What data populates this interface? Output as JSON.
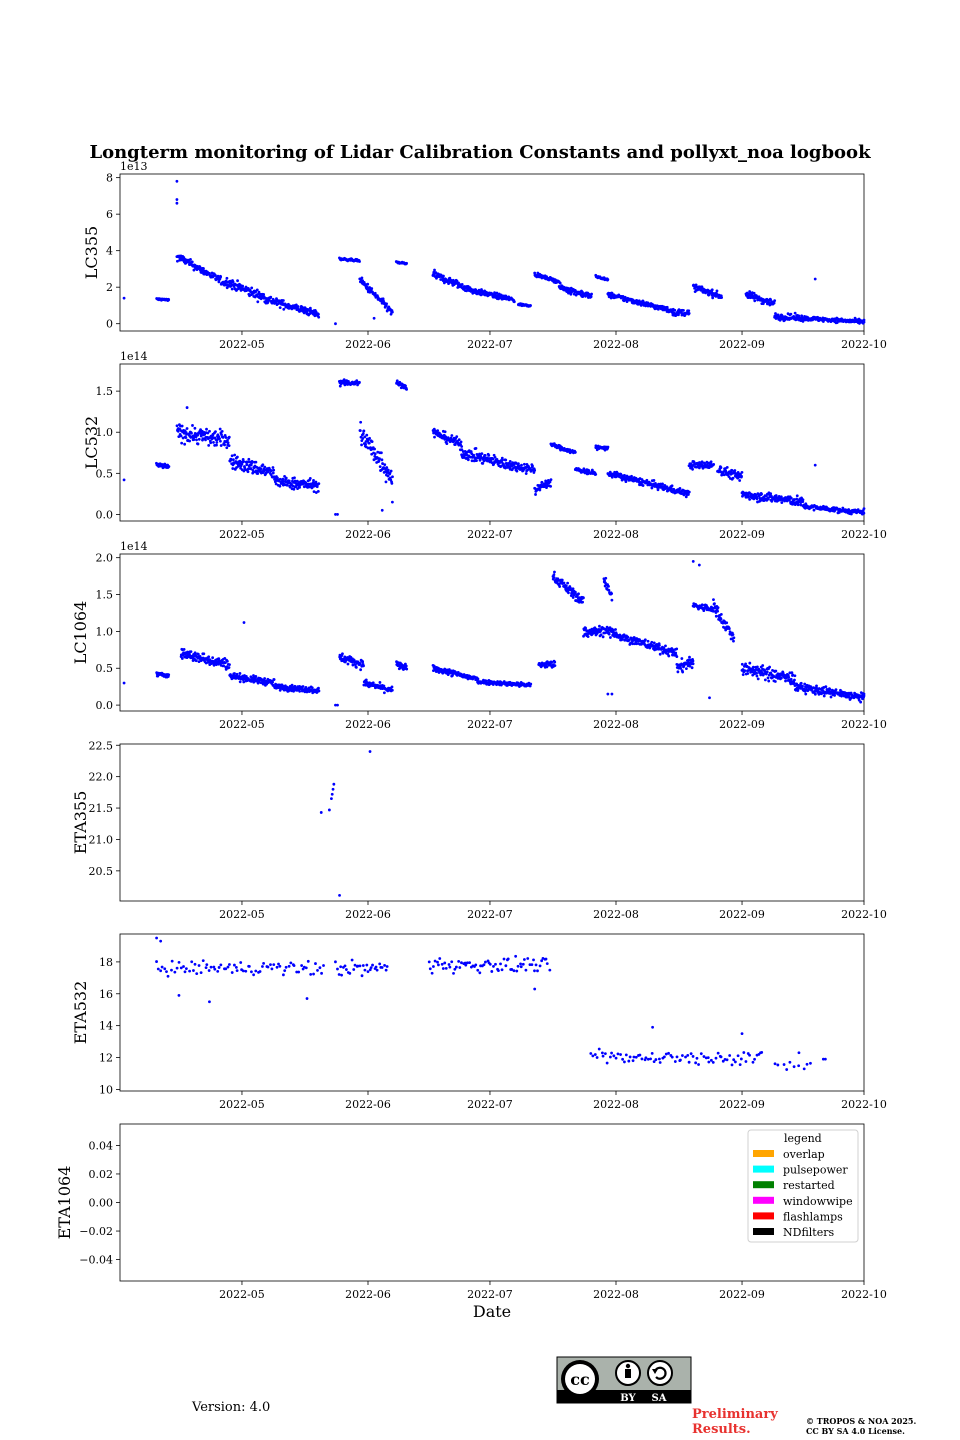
{
  "figure": {
    "title": "Longterm monitoring of Lidar Calibration Constants and pollyxt_noa logbook",
    "xlabel": "Date",
    "version": "Version: 4.0",
    "preliminary": [
      "Preliminary",
      "Results."
    ],
    "copyright": [
      "© TROPOS & NOA 2025.",
      "CC BY SA 4.0 License."
    ],
    "license_badge": {
      "icon": "cc-by-sa-icon",
      "by": "BY",
      "sa": "SA"
    }
  },
  "colors": {
    "points": "#0000ff",
    "axis": "#000000",
    "background": "#ffffff",
    "prelim": "#e8322f"
  },
  "chart_data": [
    {
      "type": "scatter",
      "ylabel": "LC355",
      "offset": "1e13",
      "xlim": [
        "2022-04-01",
        "2022-10-01"
      ],
      "ylim": [
        -0.4,
        8.2
      ],
      "yticks": [
        0,
        2,
        4,
        6,
        8
      ],
      "ytick_labels": [
        "0",
        "2",
        "4",
        "6",
        "8"
      ],
      "xticks": [
        "2022-05-01",
        "2022-06-01",
        "2022-07-01",
        "2022-08-01",
        "2022-09-01",
        "2022-10-01"
      ],
      "xtick_labels": [
        "2022-05",
        "2022-06",
        "2022-07",
        "2022-08",
        "2022-09",
        "2022-10"
      ],
      "segments": [
        {
          "start": 9.0,
          "end": 12.0,
          "v0": 1.35,
          "v1": 1.3,
          "noise": 0.1
        },
        {
          "start": 14.0,
          "end": 26.0,
          "v0": 3.7,
          "v1": 2.2,
          "noise": 0.35
        },
        {
          "start": 26.0,
          "end": 38.0,
          "v0": 2.3,
          "v1": 1.2,
          "noise": 0.45
        },
        {
          "start": 38.0,
          "end": 49.0,
          "v0": 1.2,
          "v1": 0.5,
          "noise": 0.35
        },
        {
          "start": 54.0,
          "end": 59.0,
          "v0": 3.55,
          "v1": 3.45,
          "noise": 0.1
        },
        {
          "start": 59.0,
          "end": 67.0,
          "v0": 2.4,
          "v1": 0.6,
          "noise": 0.35
        },
        {
          "start": 68.0,
          "end": 70.5,
          "v0": 3.35,
          "v1": 3.3,
          "noise": 0.1
        },
        {
          "start": 77.0,
          "end": 87.0,
          "v0": 2.7,
          "v1": 1.8,
          "noise": 0.35
        },
        {
          "start": 87.0,
          "end": 97.0,
          "v0": 1.8,
          "v1": 1.3,
          "noise": 0.25
        },
        {
          "start": 98.0,
          "end": 101.0,
          "v0": 1.05,
          "v1": 1.0,
          "noise": 0.1
        },
        {
          "start": 102.0,
          "end": 108.0,
          "v0": 2.7,
          "v1": 2.3,
          "noise": 0.15
        },
        {
          "start": 108.0,
          "end": 116.0,
          "v0": 2.0,
          "v1": 1.5,
          "noise": 0.3
        },
        {
          "start": 117.0,
          "end": 120.0,
          "v0": 2.6,
          "v1": 2.4,
          "noise": 0.1
        },
        {
          "start": 120.0,
          "end": 136.0,
          "v0": 1.6,
          "v1": 0.7,
          "noise": 0.25
        },
        {
          "start": 136.0,
          "end": 140.0,
          "v0": 0.6,
          "v1": 0.6,
          "noise": 0.3
        },
        {
          "start": 141.0,
          "end": 148.0,
          "v0": 2.0,
          "v1": 1.5,
          "noise": 0.3
        },
        {
          "start": 154.0,
          "end": 161.0,
          "v0": 1.6,
          "v1": 1.1,
          "noise": 0.35
        },
        {
          "start": 161.0,
          "end": 168.0,
          "v0": 0.4,
          "v1": 0.3,
          "noise": 0.3
        },
        {
          "start": 168.0,
          "end": 183.0,
          "v0": 0.3,
          "v1": 0.1,
          "noise": 0.2
        }
      ],
      "outliers": [
        [
          14.0,
          7.8
        ],
        [
          14.0,
          6.8
        ],
        [
          14.0,
          6.6
        ],
        [
          20.5,
          3.0
        ],
        [
          53.0,
          0.0
        ],
        [
          62.5,
          0.3
        ],
        [
          171.0,
          2.45
        ],
        [
          1.0,
          1.4
        ],
        [
          183.0,
          0.2
        ]
      ]
    },
    {
      "type": "scatter",
      "ylabel": "LC532",
      "offset": "1e14",
      "xlim": [
        "2022-04-01",
        "2022-10-01"
      ],
      "ylim": [
        -0.08,
        1.83
      ],
      "yticks": [
        0,
        0.5,
        1.0,
        1.5
      ],
      "ytick_labels": [
        "0.0",
        "0.5",
        "1.0",
        "1.5"
      ],
      "xticks": [
        "2022-05-01",
        "2022-06-01",
        "2022-07-01",
        "2022-08-01",
        "2022-09-01",
        "2022-10-01"
      ],
      "xtick_labels": [
        "2022-05",
        "2022-06",
        "2022-07",
        "2022-08",
        "2022-09",
        "2022-10"
      ],
      "segments": [
        {
          "start": 9.0,
          "end": 12.0,
          "v0": 0.6,
          "v1": 0.58,
          "noise": 0.05
        },
        {
          "start": 14.0,
          "end": 27.0,
          "v0": 1.0,
          "v1": 0.9,
          "noise": 0.18
        },
        {
          "start": 27.0,
          "end": 38.0,
          "v0": 0.65,
          "v1": 0.5,
          "noise": 0.15
        },
        {
          "start": 38.0,
          "end": 49.0,
          "v0": 0.4,
          "v1": 0.35,
          "noise": 0.12
        },
        {
          "start": 54.0,
          "end": 59.0,
          "v0": 1.6,
          "v1": 1.6,
          "noise": 0.06
        },
        {
          "start": 59.0,
          "end": 67.0,
          "v0": 1.0,
          "v1": 0.45,
          "noise": 0.25
        },
        {
          "start": 68.0,
          "end": 70.5,
          "v0": 1.6,
          "v1": 1.55,
          "noise": 0.05
        },
        {
          "start": 77.0,
          "end": 84.0,
          "v0": 1.0,
          "v1": 0.85,
          "noise": 0.1
        },
        {
          "start": 84.0,
          "end": 96.0,
          "v0": 0.75,
          "v1": 0.6,
          "noise": 0.12
        },
        {
          "start": 96.0,
          "end": 102.0,
          "v0": 0.6,
          "v1": 0.55,
          "noise": 0.1
        },
        {
          "start": 102.0,
          "end": 106.0,
          "v0": 0.3,
          "v1": 0.4,
          "noise": 0.1
        },
        {
          "start": 106.0,
          "end": 112.0,
          "v0": 0.85,
          "v1": 0.75,
          "noise": 0.04
        },
        {
          "start": 112.0,
          "end": 117.0,
          "v0": 0.55,
          "v1": 0.5,
          "noise": 0.05
        },
        {
          "start": 117.0,
          "end": 120.0,
          "v0": 0.82,
          "v1": 0.8,
          "noise": 0.04
        },
        {
          "start": 120.0,
          "end": 140.0,
          "v0": 0.5,
          "v1": 0.25,
          "noise": 0.07
        },
        {
          "start": 140.0,
          "end": 146.0,
          "v0": 0.6,
          "v1": 0.6,
          "noise": 0.08
        },
        {
          "start": 147.0,
          "end": 153.0,
          "v0": 0.55,
          "v1": 0.45,
          "noise": 0.1
        },
        {
          "start": 153.0,
          "end": 168.0,
          "v0": 0.25,
          "v1": 0.15,
          "noise": 0.1
        },
        {
          "start": 168.0,
          "end": 183.0,
          "v0": 0.1,
          "v1": 0.02,
          "noise": 0.05
        }
      ],
      "outliers": [
        [
          53.0,
          0.0
        ],
        [
          53.5,
          0.0
        ],
        [
          16.5,
          1.3
        ],
        [
          171.0,
          0.6
        ],
        [
          1.0,
          0.42
        ],
        [
          183.0,
          0.07
        ],
        [
          64.5,
          0.05
        ],
        [
          67.0,
          0.15
        ]
      ]
    },
    {
      "type": "scatter",
      "ylabel": "LC1064",
      "offset": "1e14",
      "xlim": [
        "2022-04-01",
        "2022-10-01"
      ],
      "ylim": [
        -0.08,
        2.05
      ],
      "yticks": [
        0,
        0.5,
        1.0,
        1.5,
        2.0
      ],
      "ytick_labels": [
        "0.0",
        "0.5",
        "1.0",
        "1.5",
        "2.0"
      ],
      "xticks": [
        "2022-05-01",
        "2022-06-01",
        "2022-07-01",
        "2022-08-01",
        "2022-09-01",
        "2022-10-01"
      ],
      "xtick_labels": [
        "2022-05",
        "2022-06",
        "2022-07",
        "2022-08",
        "2022-09",
        "2022-10"
      ],
      "segments": [
        {
          "start": 9.0,
          "end": 12.0,
          "v0": 0.42,
          "v1": 0.4,
          "noise": 0.05
        },
        {
          "start": 15.0,
          "end": 27.0,
          "v0": 0.7,
          "v1": 0.55,
          "noise": 0.12
        },
        {
          "start": 27.0,
          "end": 38.0,
          "v0": 0.4,
          "v1": 0.3,
          "noise": 0.08
        },
        {
          "start": 38.0,
          "end": 49.0,
          "v0": 0.25,
          "v1": 0.2,
          "noise": 0.07
        },
        {
          "start": 54.0,
          "end": 60.0,
          "v0": 0.65,
          "v1": 0.55,
          "noise": 0.1
        },
        {
          "start": 60.0,
          "end": 67.0,
          "v0": 0.3,
          "v1": 0.2,
          "noise": 0.08
        },
        {
          "start": 68.0,
          "end": 70.5,
          "v0": 0.55,
          "v1": 0.5,
          "noise": 0.08
        },
        {
          "start": 77.0,
          "end": 88.0,
          "v0": 0.5,
          "v1": 0.35,
          "noise": 0.07
        },
        {
          "start": 88.0,
          "end": 101.0,
          "v0": 0.32,
          "v1": 0.27,
          "noise": 0.05
        },
        {
          "start": 103.0,
          "end": 107.0,
          "v0": 0.55,
          "v1": 0.55,
          "noise": 0.08
        },
        {
          "start": 106.5,
          "end": 114.0,
          "v0": 1.75,
          "v1": 1.4,
          "noise": 0.12
        },
        {
          "start": 114.0,
          "end": 122.0,
          "v0": 1.0,
          "v1": 1.0,
          "noise": 0.14
        },
        {
          "start": 119.0,
          "end": 121.0,
          "v0": 1.7,
          "v1": 1.5,
          "noise": 0.12
        },
        {
          "start": 122.0,
          "end": 137.0,
          "v0": 0.95,
          "v1": 0.7,
          "noise": 0.1
        },
        {
          "start": 137.0,
          "end": 141.0,
          "v0": 0.5,
          "v1": 0.6,
          "noise": 0.15
        },
        {
          "start": 141.0,
          "end": 146.0,
          "v0": 1.35,
          "v1": 1.3,
          "noise": 0.08
        },
        {
          "start": 146.0,
          "end": 151.0,
          "v0": 1.35,
          "v1": 0.9,
          "noise": 0.15
        },
        {
          "start": 153.0,
          "end": 166.0,
          "v0": 0.5,
          "v1": 0.35,
          "noise": 0.15
        },
        {
          "start": 166.0,
          "end": 183.0,
          "v0": 0.25,
          "v1": 0.1,
          "noise": 0.1
        }
      ],
      "outliers": [
        [
          53.0,
          0.0
        ],
        [
          53.5,
          0.0
        ],
        [
          30.5,
          1.12
        ],
        [
          120.0,
          0.15
        ],
        [
          121.0,
          0.15
        ],
        [
          145.0,
          0.1
        ],
        [
          1.0,
          0.3
        ],
        [
          183.0,
          0.15
        ],
        [
          141.0,
          1.95
        ],
        [
          142.5,
          1.9
        ]
      ]
    },
    {
      "type": "scatter",
      "ylabel": "ETA355",
      "xlim": [
        "2022-04-01",
        "2022-10-01"
      ],
      "ylim": [
        20.02,
        22.52
      ],
      "yticks": [
        20.5,
        21.0,
        21.5,
        22.0,
        22.5
      ],
      "ytick_labels": [
        "20.5",
        "21.0",
        "21.5",
        "22.0",
        "22.5"
      ],
      "xticks": [
        "2022-05-01",
        "2022-06-01",
        "2022-07-01",
        "2022-08-01",
        "2022-09-01",
        "2022-10-01"
      ],
      "xtick_labels": [
        "2022-05",
        "2022-06",
        "2022-07",
        "2022-08",
        "2022-09",
        "2022-10"
      ],
      "segments": [],
      "outliers": [
        [
          49.5,
          21.43
        ],
        [
          51.5,
          21.47
        ],
        [
          52.0,
          21.65
        ],
        [
          52.2,
          21.72
        ],
        [
          52.4,
          21.8
        ],
        [
          52.6,
          21.88
        ],
        [
          54.0,
          20.11
        ],
        [
          61.5,
          22.4
        ]
      ]
    },
    {
      "type": "scatter",
      "ylabel": "ETA532",
      "xlim": [
        "2022-04-01",
        "2022-10-01"
      ],
      "ylim": [
        9.9,
        19.75
      ],
      "yticks": [
        10,
        12,
        14,
        16,
        18
      ],
      "ytick_labels": [
        "10",
        "12",
        "14",
        "16",
        "18"
      ],
      "xticks": [
        "2022-05-01",
        "2022-06-01",
        "2022-07-01",
        "2022-08-01",
        "2022-09-01",
        "2022-10-01"
      ],
      "xtick_labels": [
        "2022-05",
        "2022-06",
        "2022-07",
        "2022-08",
        "2022-09",
        "2022-10"
      ],
      "segments": [
        {
          "start": 9.0,
          "end": 50.0,
          "v0": 17.6,
          "v1": 17.6,
          "noise": 0.75,
          "step": 0.5
        },
        {
          "start": 53.0,
          "end": 66.0,
          "v0": 17.6,
          "v1": 17.6,
          "noise": 0.8,
          "step": 0.4
        },
        {
          "start": 76.0,
          "end": 106.0,
          "v0": 17.8,
          "v1": 17.8,
          "noise": 0.8,
          "step": 0.4
        },
        {
          "start": 116.0,
          "end": 158.0,
          "v0": 12.0,
          "v1": 12.0,
          "noise": 0.7,
          "step": 0.5
        },
        {
          "start": 161.0,
          "end": 170.0,
          "v0": 11.5,
          "v1": 11.5,
          "noise": 0.6,
          "step": 1.0
        }
      ],
      "outliers": [
        [
          9.0,
          19.5
        ],
        [
          10.0,
          19.3
        ],
        [
          14.5,
          15.9
        ],
        [
          22.0,
          15.5
        ],
        [
          46.0,
          15.7
        ],
        [
          102.0,
          16.3
        ],
        [
          131.0,
          13.9
        ],
        [
          153.0,
          13.5
        ],
        [
          173.0,
          11.9
        ],
        [
          173.5,
          11.9
        ],
        [
          167.0,
          12.3
        ]
      ]
    },
    {
      "type": "scatter",
      "ylabel": "ETA1064",
      "xlabel": "Date",
      "xlim": [
        "2022-04-01",
        "2022-10-01"
      ],
      "ylim": [
        -0.055,
        0.055
      ],
      "yticks": [
        -0.04,
        -0.02,
        0.0,
        0.02,
        0.04
      ],
      "ytick_labels": [
        "−0.04",
        "−0.02",
        "0.00",
        "0.02",
        "0.04"
      ],
      "xticks": [
        "2022-05-01",
        "2022-06-01",
        "2022-07-01",
        "2022-08-01",
        "2022-09-01",
        "2022-10-01"
      ],
      "xtick_labels": [
        "2022-05",
        "2022-06",
        "2022-07",
        "2022-08",
        "2022-09",
        "2022-10"
      ],
      "segments": [],
      "outliers": [],
      "legend": {
        "title": "legend",
        "placement": "upper-right",
        "entries": [
          {
            "label": "overlap",
            "color": "#ffa500"
          },
          {
            "label": "pulsepower",
            "color": "#00ffff"
          },
          {
            "label": "restarted",
            "color": "#008000"
          },
          {
            "label": "windowwipe",
            "color": "#ff00ff"
          },
          {
            "label": "flashlamps",
            "color": "#ff0000"
          },
          {
            "label": "NDfilters",
            "color": "#000000"
          }
        ]
      }
    }
  ]
}
